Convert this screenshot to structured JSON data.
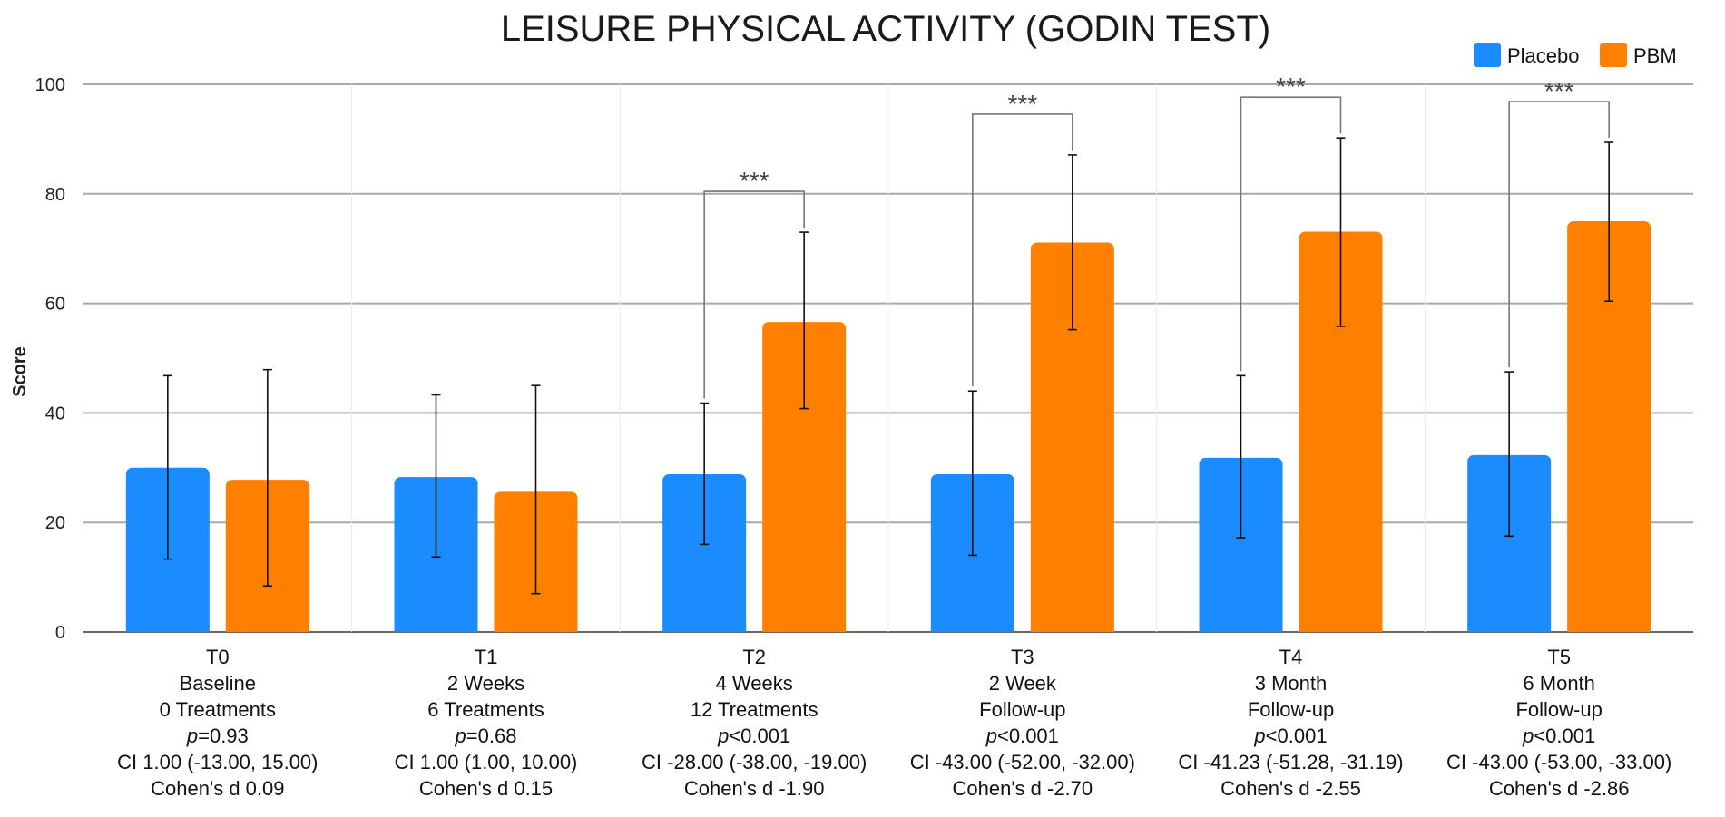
{
  "chart_data": {
    "type": "bar",
    "title": "LEISURE PHYSICAL ACTIVITY (GODIN TEST)",
    "ylabel": "Score",
    "xlabel": "",
    "ylim": [
      0,
      100
    ],
    "yticks": [
      0,
      20,
      40,
      60,
      80,
      100
    ],
    "grid": true,
    "legend_position": "top-right",
    "categories": [
      {
        "code": "T0",
        "line1": "Baseline",
        "line2": "0 Treatments",
        "p": "=0.93",
        "ci": "CI 1.00 (-13.00, 15.00)",
        "d": "Cohen's d 0.09",
        "significance": ""
      },
      {
        "code": "T1",
        "line1": "2 Weeks",
        "line2": "6 Treatments",
        "p": "=0.68",
        "ci": "CI 1.00 (1.00, 10.00)",
        "d": "Cohen's d 0.15",
        "significance": ""
      },
      {
        "code": "T2",
        "line1": "4 Weeks",
        "line2": "12 Treatments",
        "p": "<0.001",
        "ci": "CI -28.00 (-38.00, -19.00)",
        "d": "Cohen's d -1.90",
        "significance": "***"
      },
      {
        "code": "T3",
        "line1": "2 Week",
        "line2": "Follow-up",
        "p": "<0.001",
        "ci": "CI -43.00 (-52.00, -32.00)",
        "d": "Cohen's d -2.70",
        "significance": "***"
      },
      {
        "code": "T4",
        "line1": "3 Month",
        "line2": "Follow-up",
        "p": "<0.001",
        "ci": "CI -41.23 (-51.28, -31.19)",
        "d": "Cohen's d -2.55",
        "significance": "***"
      },
      {
        "code": "T5",
        "line1": "6 Month",
        "line2": "Follow-up",
        "p": "<0.001",
        "ci": "CI -43.00 (-53.00, -33.00)",
        "d": "Cohen's d -2.86",
        "significance": "***"
      }
    ],
    "p_prefix": "p",
    "series": [
      {
        "name": "Placebo",
        "color": "#1a8cff",
        "values": [
          30,
          28.3,
          28.8,
          28.8,
          31.8,
          32.3
        ],
        "err_low": [
          13.3,
          13.7,
          16,
          14,
          17.2,
          17.5
        ],
        "err_high": [
          46.8,
          43.3,
          41.8,
          44,
          46.8,
          47.5
        ]
      },
      {
        "name": "PBM",
        "color": "#ff8000",
        "values": [
          27.8,
          25.6,
          56.6,
          71.1,
          73.1,
          75
        ],
        "err_low": [
          8.4,
          7,
          40.8,
          55.2,
          55.8,
          60.4
        ],
        "err_high": [
          47.9,
          45,
          73,
          87.1,
          90.2,
          89.4
        ]
      }
    ]
  }
}
